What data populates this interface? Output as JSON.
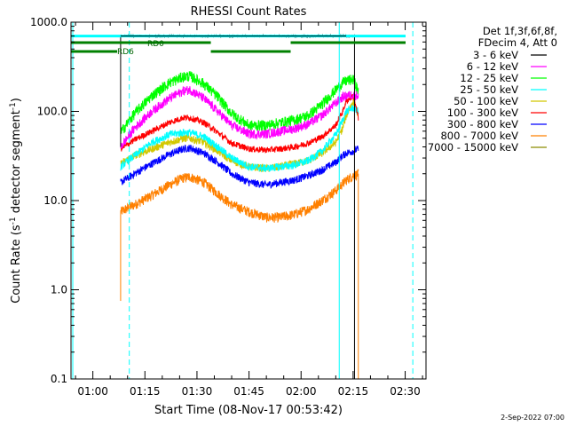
{
  "chart_data": {
    "type": "line",
    "title": "RHESSI Count Rates",
    "xlabel": "Start Time (08-Nov-17 00:53:42)",
    "ylabel_parts": [
      "Count Rate (s",
      "-1",
      " detector segment",
      "-1",
      ")"
    ],
    "yscale": "log",
    "ylim": [
      0.1,
      1000.0
    ],
    "ytick_labels": [
      "0.1",
      "1.0",
      "10.0",
      "100.0",
      "1000.0"
    ],
    "ytick_values": [
      0.1,
      1,
      10,
      100,
      1000
    ],
    "xlim_minutes": [
      53.7,
      156.0
    ],
    "xtick_labels": [
      "01:00",
      "01:15",
      "01:30",
      "01:45",
      "02:00",
      "02:15",
      "02:30"
    ],
    "xtick_minutes": [
      60,
      75,
      90,
      105,
      120,
      135,
      150
    ],
    "legend_header": [
      "Det 1f,3f,6f,8f,",
      "FDecim 4, Att 0"
    ],
    "legend_placement": "right, outside plot",
    "series": [
      {
        "name": "3 - 6 keV",
        "color": "#000000"
      },
      {
        "name": "6 - 12 keV",
        "color": "#ff00ff"
      },
      {
        "name": "12 - 25 keV",
        "color": "#00ff00"
      },
      {
        "name": "25 - 50 keV",
        "color": "#00ffff"
      },
      {
        "name": "50 - 100 keV",
        "color": "#d2c800"
      },
      {
        "name": "100 - 300 keV",
        "color": "#ff0000"
      },
      {
        "name": "300 - 800 keV",
        "color": "#0000ff"
      },
      {
        "name": "800 - 7000 keV",
        "color": "#ff8000"
      },
      {
        "name": "7000 - 15000 keV",
        "color": "#8c8c00"
      }
    ],
    "approx_profiles": {
      "x_minutes": [
        68,
        72,
        77,
        82,
        86,
        88,
        92,
        96,
        100,
        105,
        110,
        114,
        118,
        122,
        126,
        130,
        132,
        133,
        135,
        136.5
      ],
      "3 - 6 keV": [
        700,
        700,
        700,
        700,
        700,
        700,
        700,
        700,
        700,
        700,
        700,
        700,
        700,
        700,
        700,
        700,
        700,
        700,
        700,
        700
      ],
      "6 - 12 keV": [
        40,
        65,
        100,
        140,
        170,
        175,
        140,
        100,
        70,
        56,
        56,
        60,
        64,
        72,
        90,
        125,
        145,
        150,
        155,
        150
      ],
      "12 - 25 keV": [
        58,
        95,
        150,
        210,
        245,
        250,
        205,
        145,
        95,
        70,
        70,
        75,
        80,
        90,
        120,
        175,
        210,
        220,
        230,
        170
      ],
      "25 - 50 keV": [
        24,
        32,
        45,
        55,
        58,
        58,
        52,
        40,
        30,
        24,
        23,
        24,
        25,
        28,
        36,
        55,
        80,
        100,
        110,
        100
      ],
      "50 - 100 keV": [
        26,
        32,
        38,
        45,
        50,
        50,
        45,
        36,
        28,
        24,
        23,
        24,
        26,
        28,
        34,
        45,
        65,
        90,
        130,
        90
      ],
      "100 - 300 keV": [
        38,
        48,
        60,
        75,
        85,
        85,
        75,
        58,
        44,
        38,
        37,
        38,
        40,
        44,
        52,
        70,
        100,
        130,
        150,
        85
      ],
      "300 - 800 keV": [
        16,
        20,
        26,
        33,
        38,
        39,
        34,
        27,
        20,
        16,
        15,
        16,
        17,
        19,
        22,
        27,
        32,
        34,
        36,
        38
      ],
      "800 - 7000 keV": [
        7.5,
        9,
        11.5,
        15,
        18,
        18.5,
        16,
        12,
        9,
        7.5,
        6.5,
        6.5,
        7,
        8,
        10,
        13,
        15.5,
        17,
        19,
        20
      ]
    },
    "annotations": [
      {
        "text": "RD0",
        "color": "#006400"
      },
      {
        "text": "RD6",
        "color": "#006400"
      }
    ],
    "timestamp": "2-Sep-2022 07:00"
  }
}
